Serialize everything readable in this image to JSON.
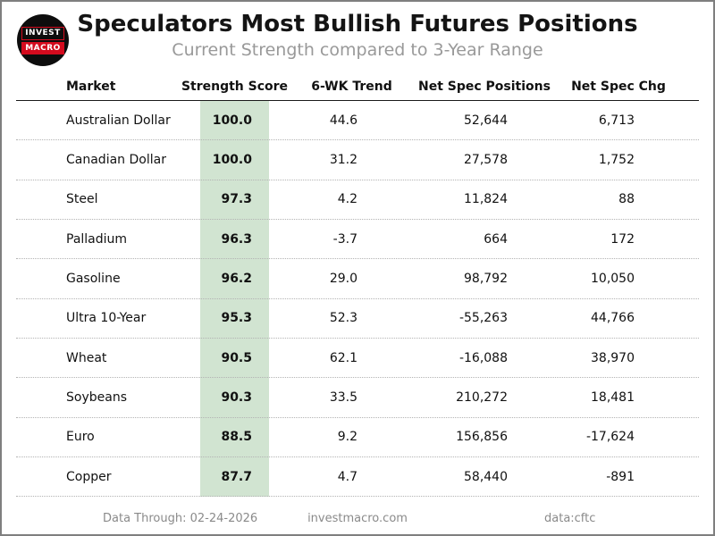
{
  "logo": {
    "line1": "INVEST",
    "line2": "MACRO"
  },
  "footer": {
    "data_through": "Data Through: 02-24-2026",
    "site": "investmacro.com",
    "source": "data:cftc"
  },
  "colors": {
    "score_band": "#d1e4d1",
    "logo_red": "#d40b1e",
    "subtitle_gray": "#999999"
  },
  "chart_data": {
    "type": "table",
    "title": "Speculators Most Bullish Futures Positions",
    "subtitle": "Current Strength compared to 3-Year Range",
    "columns": [
      "Market",
      "Strength Score",
      "6-WK Trend",
      "Net Spec Positions",
      "Net Spec Chg"
    ],
    "highlighted_column": "Strength Score",
    "rows": [
      {
        "market": "Australian Dollar",
        "score": "100.0",
        "trend": "44.6",
        "positions": "52,644",
        "chg": "6,713"
      },
      {
        "market": "Canadian Dollar",
        "score": "100.0",
        "trend": "31.2",
        "positions": "27,578",
        "chg": "1,752"
      },
      {
        "market": "Steel",
        "score": "97.3",
        "trend": "4.2",
        "positions": "11,824",
        "chg": "88"
      },
      {
        "market": "Palladium",
        "score": "96.3",
        "trend": "-3.7",
        "positions": "664",
        "chg": "172"
      },
      {
        "market": "Gasoline",
        "score": "96.2",
        "trend": "29.0",
        "positions": "98,792",
        "chg": "10,050"
      },
      {
        "market": "Ultra 10-Year",
        "score": "95.3",
        "trend": "52.3",
        "positions": "-55,263",
        "chg": "44,766"
      },
      {
        "market": "Wheat",
        "score": "90.5",
        "trend": "62.1",
        "positions": "-16,088",
        "chg": "38,970"
      },
      {
        "market": "Soybeans",
        "score": "90.3",
        "trend": "33.5",
        "positions": "210,272",
        "chg": "18,481"
      },
      {
        "market": "Euro",
        "score": "88.5",
        "trend": "9.2",
        "positions": "156,856",
        "chg": "-17,624"
      },
      {
        "market": "Copper",
        "score": "87.7",
        "trend": "4.7",
        "positions": "58,440",
        "chg": "-891"
      }
    ]
  }
}
